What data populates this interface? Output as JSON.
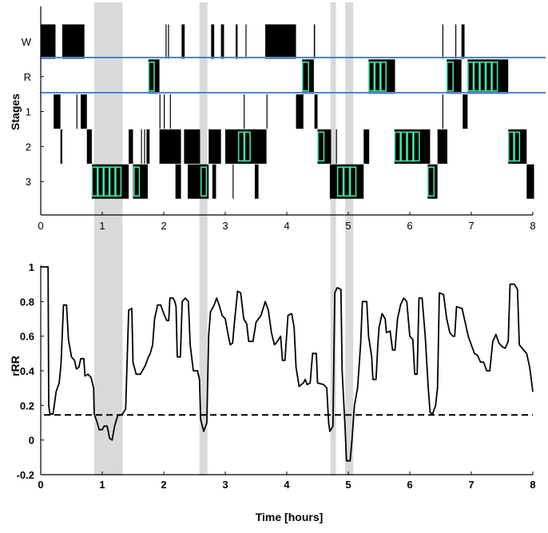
{
  "colors": {
    "band": "#d9d9d9",
    "boundary": "#4a86d4",
    "scored": "#3ee6a6",
    "line": "#000000"
  },
  "chart_data": [
    {
      "type": "step",
      "ylabel": "Stages",
      "xlabel": "",
      "xlim": [
        0,
        8
      ],
      "xticks": [
        "0",
        "1",
        "2",
        "3",
        "4",
        "5",
        "6",
        "7",
        "8"
      ],
      "stage_labels": [
        "W",
        "R",
        "1",
        "2",
        "3"
      ],
      "shaded_intervals": [
        [
          0.87,
          1.33
        ],
        [
          2.58,
          2.71
        ],
        [
          4.71,
          4.8
        ],
        [
          4.95,
          5.08
        ]
      ],
      "segments": [
        [
          0.0,
          0.24,
          "W"
        ],
        [
          0.21,
          0.32,
          "1"
        ],
        [
          0.32,
          0.35,
          "2"
        ],
        [
          0.35,
          0.71,
          "W"
        ],
        [
          0.58,
          0.59,
          "1"
        ],
        [
          0.65,
          0.75,
          "1"
        ],
        [
          0.75,
          0.83,
          "2"
        ],
        [
          0.83,
          1.43,
          "3"
        ],
        [
          1.43,
          1.5,
          "2"
        ],
        [
          1.5,
          1.74,
          "3"
        ],
        [
          1.63,
          1.64,
          "2"
        ],
        [
          1.68,
          1.69,
          "2"
        ],
        [
          1.72,
          1.77,
          "2"
        ],
        [
          1.75,
          1.93,
          "R"
        ],
        [
          1.93,
          1.94,
          "1"
        ],
        [
          1.93,
          2.28,
          "2"
        ],
        [
          2.03,
          2.04,
          "W"
        ],
        [
          2.07,
          2.08,
          "W"
        ],
        [
          2.0,
          2.01,
          "1"
        ],
        [
          2.1,
          2.11,
          "1"
        ],
        [
          2.19,
          2.28,
          "3"
        ],
        [
          2.29,
          2.34,
          "W"
        ],
        [
          2.33,
          2.59,
          "2"
        ],
        [
          2.39,
          2.73,
          "3"
        ],
        [
          2.73,
          2.93,
          "2"
        ],
        [
          2.77,
          2.82,
          "W"
        ],
        [
          2.79,
          2.85,
          "3"
        ],
        [
          2.93,
          2.98,
          "W"
        ],
        [
          3.0,
          3.67,
          "2"
        ],
        [
          3.12,
          3.13,
          "3"
        ],
        [
          3.17,
          3.2,
          "W"
        ],
        [
          3.33,
          3.34,
          "W"
        ],
        [
          3.3,
          3.31,
          "1"
        ],
        [
          3.48,
          3.54,
          "3"
        ],
        [
          3.65,
          4.15,
          "W"
        ],
        [
          3.67,
          3.68,
          "1"
        ],
        [
          4.15,
          4.27,
          "1"
        ],
        [
          4.25,
          4.44,
          "R"
        ],
        [
          4.44,
          4.46,
          "W"
        ],
        [
          4.45,
          4.5,
          "1"
        ],
        [
          4.5,
          4.72,
          "2"
        ],
        [
          4.7,
          4.82,
          "3"
        ],
        [
          4.8,
          4.81,
          "2"
        ],
        [
          4.82,
          5.25,
          "3"
        ],
        [
          5.25,
          5.34,
          "2"
        ],
        [
          5.33,
          5.76,
          "R"
        ],
        [
          5.75,
          6.33,
          "2"
        ],
        [
          6.29,
          6.45,
          "3"
        ],
        [
          6.45,
          6.61,
          "2"
        ],
        [
          6.53,
          6.54,
          "1"
        ],
        [
          6.53,
          6.54,
          "W"
        ],
        [
          6.6,
          6.84,
          "R"
        ],
        [
          6.74,
          6.75,
          "W"
        ],
        [
          6.84,
          6.89,
          "W"
        ],
        [
          6.86,
          6.94,
          "1"
        ],
        [
          6.94,
          7.6,
          "R"
        ],
        [
          7.6,
          7.9,
          "2"
        ],
        [
          7.9,
          8.02,
          "3"
        ]
      ],
      "scored_epochs": [
        [
          0.83,
          1.31,
          "3",
          5
        ],
        [
          1.51,
          1.61,
          "3",
          1
        ],
        [
          1.75,
          1.85,
          "R",
          1
        ],
        [
          2.6,
          2.7,
          "3",
          1
        ],
        [
          3.21,
          3.41,
          "2",
          2
        ],
        [
          4.25,
          4.36,
          "R",
          1
        ],
        [
          4.5,
          4.61,
          "2",
          1
        ],
        [
          4.82,
          5.13,
          "3",
          3
        ],
        [
          5.33,
          5.62,
          "R",
          3
        ],
        [
          5.75,
          6.16,
          "2",
          4
        ],
        [
          6.29,
          6.4,
          "3",
          1
        ],
        [
          6.6,
          6.71,
          "R",
          1
        ],
        [
          6.94,
          7.43,
          "R",
          5
        ],
        [
          7.6,
          7.79,
          "2",
          2
        ]
      ]
    },
    {
      "type": "line",
      "ylabel": "rRR",
      "xlabel": "Time [hours]",
      "xlim": [
        0,
        8
      ],
      "ylim": [
        -0.2,
        1
      ],
      "xticks": [
        "0",
        "1",
        "2",
        "3",
        "4",
        "5",
        "6",
        "7",
        "8"
      ],
      "yticks": [
        "1",
        "0.8",
        "0.6",
        "0.4",
        "0.2",
        "0",
        "-0.2"
      ],
      "threshold": 0.145,
      "shaded_intervals": [
        [
          0.87,
          1.33
        ],
        [
          2.58,
          2.71
        ],
        [
          4.71,
          4.8
        ],
        [
          4.95,
          5.08
        ]
      ],
      "x": [
        0,
        0.12,
        0.13,
        0.15,
        0.2,
        0.25,
        0.3,
        0.33,
        0.37,
        0.42,
        0.45,
        0.5,
        0.55,
        0.58,
        0.62,
        0.65,
        0.7,
        0.72,
        0.77,
        0.82,
        0.86,
        0.87,
        0.92,
        0.95,
        1.0,
        1.03,
        1.08,
        1.12,
        1.16,
        1.2,
        1.25,
        1.33,
        1.38,
        1.43,
        1.48,
        1.5,
        1.55,
        1.62,
        1.7,
        1.75,
        1.78,
        1.82,
        1.85,
        1.9,
        1.95,
        2.0,
        2.05,
        2.08,
        2.1,
        2.15,
        2.18,
        2.2,
        2.22,
        2.27,
        2.3,
        2.35,
        2.4,
        2.43,
        2.48,
        2.55,
        2.58,
        2.6,
        2.65,
        2.7,
        2.73,
        2.76,
        2.82,
        2.86,
        2.9,
        2.95,
        3.0,
        3.05,
        3.08,
        3.12,
        3.15,
        3.2,
        3.25,
        3.3,
        3.35,
        3.38,
        3.45,
        3.5,
        3.58,
        3.65,
        3.7,
        3.75,
        3.8,
        3.85,
        3.9,
        3.93,
        3.97,
        4.02,
        4.08,
        4.12,
        4.15,
        4.2,
        4.27,
        4.3,
        4.33,
        4.38,
        4.42,
        4.48,
        4.5,
        4.6,
        4.65,
        4.68,
        4.7,
        4.75,
        4.78,
        4.82,
        4.88,
        4.9,
        4.95,
        4.97,
        5.03,
        5.06,
        5.1,
        5.15,
        5.2,
        5.23,
        5.3,
        5.33,
        5.38,
        5.4,
        5.45,
        5.48,
        5.5,
        5.55,
        5.6,
        5.62,
        5.68,
        5.72,
        5.76,
        5.8,
        5.85,
        5.9,
        5.95,
        6.0,
        6.05,
        6.08,
        6.12,
        6.15,
        6.2,
        6.25,
        6.3,
        6.33,
        6.37,
        6.42,
        6.45,
        6.48,
        6.55,
        6.6,
        6.65,
        6.7,
        6.73,
        6.76,
        6.85,
        6.9,
        6.95,
        7.0,
        7.05,
        7.1,
        7.15,
        7.2,
        7.25,
        7.3,
        7.35,
        7.4,
        7.45,
        7.5,
        7.55,
        7.6,
        7.63,
        7.7,
        7.75,
        7.78,
        7.85,
        7.9,
        7.95,
        8.0
      ],
      "y": [
        1,
        1,
        0.2,
        0.15,
        0.15,
        0.28,
        0.33,
        0.44,
        0.78,
        0.78,
        0.58,
        0.48,
        0.46,
        0.41,
        0.42,
        0.47,
        0.47,
        0.37,
        0.38,
        0.36,
        0.3,
        0.15,
        0.1,
        0.06,
        0.06,
        0.08,
        0.08,
        0.01,
        0.0,
        0.08,
        0.14,
        0.15,
        0.18,
        0.75,
        0.76,
        0.45,
        0.38,
        0.38,
        0.43,
        0.48,
        0.5,
        0.55,
        0.7,
        0.78,
        0.78,
        0.73,
        0.69,
        0.69,
        0.82,
        0.82,
        0.8,
        0.77,
        0.48,
        0.48,
        0.8,
        0.82,
        0.8,
        0.55,
        0.4,
        0.4,
        0.35,
        0.12,
        0.05,
        0.1,
        0.6,
        0.74,
        0.78,
        0.82,
        0.78,
        0.72,
        0.7,
        0.6,
        0.55,
        0.56,
        0.68,
        0.86,
        0.85,
        0.7,
        0.67,
        0.57,
        0.57,
        0.68,
        0.72,
        0.8,
        0.75,
        0.62,
        0.55,
        0.57,
        0.6,
        0.46,
        0.46,
        0.72,
        0.73,
        0.65,
        0.42,
        0.31,
        0.33,
        0.35,
        0.32,
        0.33,
        0.5,
        0.5,
        0.33,
        0.32,
        0.3,
        0.1,
        0.05,
        0.08,
        0.85,
        0.88,
        0.87,
        0.4,
        0.05,
        -0.12,
        -0.12,
        0.0,
        0.2,
        0.3,
        0.55,
        0.8,
        0.8,
        0.6,
        0.48,
        0.35,
        0.35,
        0.55,
        0.65,
        0.73,
        0.7,
        0.62,
        0.63,
        0.52,
        0.52,
        0.7,
        0.78,
        0.82,
        0.8,
        0.6,
        0.58,
        0.38,
        0.38,
        0.82,
        0.82,
        0.6,
        0.3,
        0.16,
        0.15,
        0.2,
        0.3,
        0.85,
        0.84,
        0.7,
        0.62,
        0.6,
        0.6,
        0.77,
        0.76,
        0.68,
        0.6,
        0.55,
        0.5,
        0.49,
        0.45,
        0.45,
        0.4,
        0.4,
        0.57,
        0.61,
        0.56,
        0.54,
        0.53,
        0.57,
        0.9,
        0.9,
        0.87,
        0.55,
        0.52,
        0.5,
        0.42,
        0.28
      ]
    }
  ]
}
